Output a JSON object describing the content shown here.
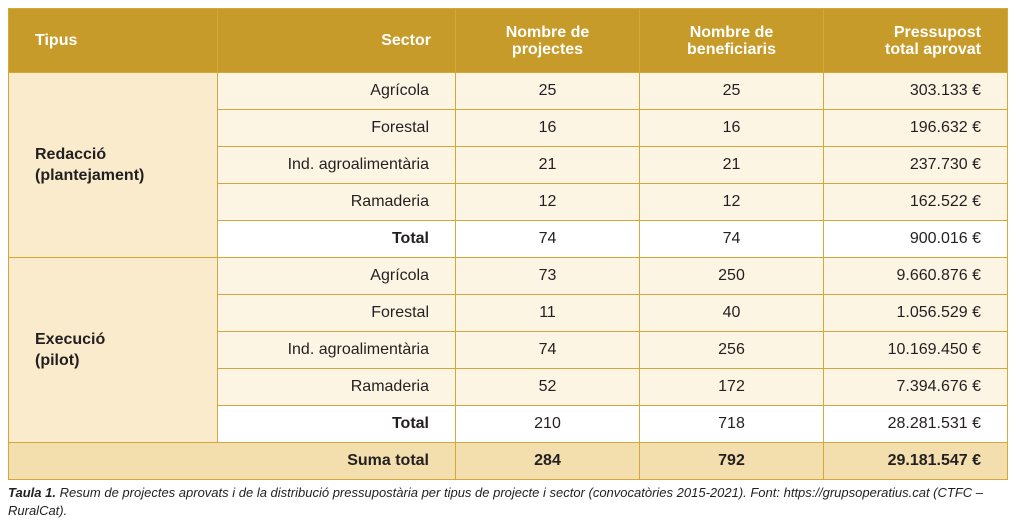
{
  "header": {
    "tipus": "Tipus",
    "sector": "Sector",
    "projects_l1": "Nombre de",
    "projects_l2": "projectes",
    "benef_l1": "Nombre de",
    "benef_l2": "beneficiaris",
    "budget_l1": "Pressupost",
    "budget_l2": "total aprovat"
  },
  "groups": [
    {
      "tipus_l1": "Redacció",
      "tipus_l2": "(plantejament)",
      "rows": [
        {
          "sector": "Agrícola",
          "projects": "25",
          "beneficiaries": "25",
          "budget": "303.133 €"
        },
        {
          "sector": "Forestal",
          "projects": "16",
          "beneficiaries": "16",
          "budget": "196.632 €"
        },
        {
          "sector": "Ind. agroalimentària",
          "projects": "21",
          "beneficiaries": "21",
          "budget": "237.730 €"
        },
        {
          "sector": "Ramaderia",
          "projects": "12",
          "beneficiaries": "12",
          "budget": "162.522 €"
        }
      ],
      "total": {
        "label": "Total",
        "projects": "74",
        "beneficiaries": "74",
        "budget": "900.016 €"
      }
    },
    {
      "tipus_l1": "Execució",
      "tipus_l2": "(pilot)",
      "rows": [
        {
          "sector": "Agrícola",
          "projects": "73",
          "beneficiaries": "250",
          "budget": "9.660.876 €"
        },
        {
          "sector": "Forestal",
          "projects": "11",
          "beneficiaries": "40",
          "budget": "1.056.529 €"
        },
        {
          "sector": "Ind. agroalimentària",
          "projects": "74",
          "beneficiaries": "256",
          "budget": "10.169.450 €"
        },
        {
          "sector": "Ramaderia",
          "projects": "52",
          "beneficiaries": "172",
          "budget": "7.394.676 €"
        }
      ],
      "total": {
        "label": "Total",
        "projects": "210",
        "beneficiaries": "718",
        "budget": "28.281.531 €"
      }
    }
  ],
  "grand_total": {
    "label": "Suma total",
    "projects": "284",
    "beneficiaries": "792",
    "budget": "29.181.547 €"
  },
  "caption": {
    "label": "Taula 1.",
    "text": "Resum de projectes aprovats i de la distribució pressupostària per tipus de projecte i sector (convocatòries 2015-2021). Font: https://grupsoperatius.cat (CTFC – RuralCat)."
  }
}
